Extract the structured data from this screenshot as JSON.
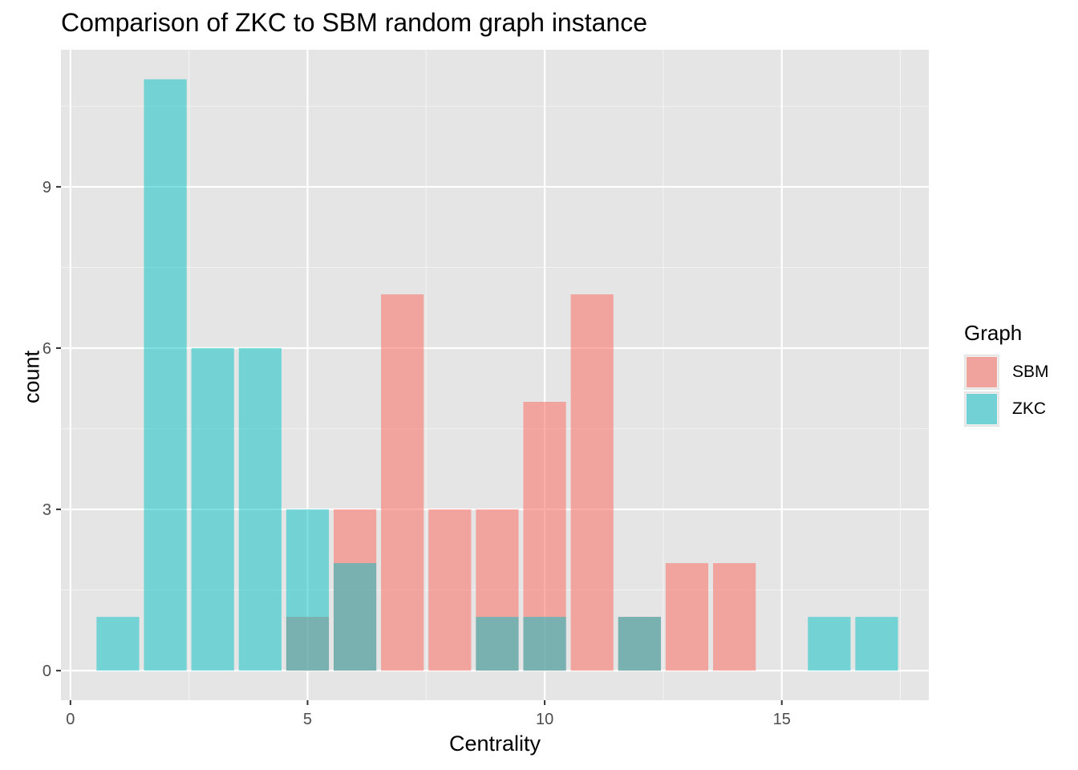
{
  "chart_data": {
    "type": "bar",
    "title": "Comparison of ZKC to SBM random graph instance",
    "xlabel": "Centrality",
    "ylabel": "count",
    "xlim": [
      -0.2,
      18.1
    ],
    "ylim": [
      -0.55,
      11.55
    ],
    "x_ticks": [
      0,
      5,
      10,
      15
    ],
    "x_minor_ticks": [
      2.5,
      7.5,
      12.5,
      17.5
    ],
    "y_ticks": [
      0,
      3,
      6,
      9
    ],
    "y_minor_ticks": [
      1.5,
      4.5,
      7.5,
      10.5
    ],
    "bar_width": 0.9,
    "legend": {
      "title": "Graph",
      "position": "right",
      "items": [
        {
          "label": "SBM",
          "color": "#F8766D"
        },
        {
          "label": "ZKC",
          "color": "#00BFC4"
        }
      ]
    },
    "series": [
      {
        "name": "SBM",
        "color": "#F8766D",
        "opacity": 0.6,
        "x": [
          5,
          6,
          7,
          8,
          9,
          10,
          11,
          12,
          13,
          14
        ],
        "values": [
          1,
          3,
          7,
          3,
          3,
          5,
          7,
          1,
          2,
          2
        ]
      },
      {
        "name": "ZKC",
        "color": "#00BFC4",
        "opacity": 0.5,
        "x": [
          1,
          2,
          3,
          4,
          5,
          6,
          9,
          10,
          12,
          16,
          17
        ],
        "values": [
          1,
          11,
          6,
          6,
          3,
          2,
          1,
          1,
          1,
          1,
          1
        ]
      }
    ]
  }
}
